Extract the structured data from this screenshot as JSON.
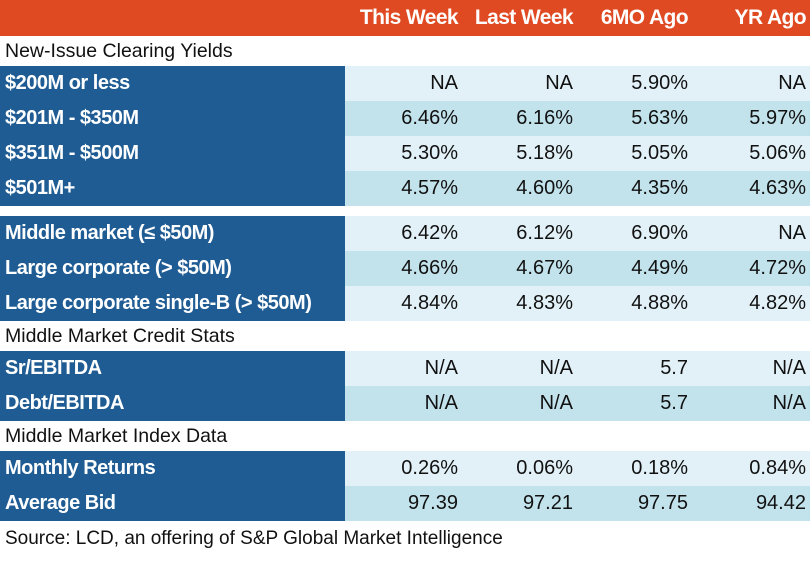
{
  "chart_data": {
    "type": "table",
    "columns": [
      "This Week",
      "Last Week",
      "6MO Ago",
      "YR Ago"
    ],
    "sections": [
      {
        "title": "New-Issue Clearing Yields",
        "rows": [
          {
            "label": "$200M or less",
            "values": [
              "NA",
              "NA",
              "5.90%",
              "NA"
            ]
          },
          {
            "label": "$201M - $350M",
            "values": [
              "6.46%",
              "6.16%",
              "5.63%",
              "5.97%"
            ]
          },
          {
            "label": "$351M - $500M",
            "values": [
              "5.30%",
              "5.18%",
              "5.05%",
              "5.06%"
            ]
          },
          {
            "label": "$501M+",
            "values": [
              "4.57%",
              "4.60%",
              "4.35%",
              "4.63%"
            ]
          }
        ]
      },
      {
        "title": "",
        "rows": [
          {
            "label": "Middle market (≤ $50M)",
            "values": [
              "6.42%",
              "6.12%",
              "6.90%",
              "NA"
            ]
          },
          {
            "label": "Large corporate (> $50M)",
            "values": [
              "4.66%",
              "4.67%",
              "4.49%",
              "4.72%"
            ]
          },
          {
            "label": "Large corporate single-B (> $50M)",
            "values": [
              "4.84%",
              "4.83%",
              "4.88%",
              "4.82%"
            ]
          }
        ]
      },
      {
        "title": "Middle Market Credit Stats",
        "rows": [
          {
            "label": "Sr/EBITDA",
            "values": [
              "N/A",
              "N/A",
              "5.7",
              "N/A"
            ]
          },
          {
            "label": "Debt/EBITDA",
            "values": [
              "N/A",
              "N/A",
              "5.7",
              "N/A"
            ]
          }
        ]
      },
      {
        "title": "Middle Market Index Data",
        "rows": [
          {
            "label": "Monthly Returns",
            "values": [
              "0.26%",
              "0.06%",
              "0.18%",
              "0.84%"
            ]
          },
          {
            "label": "Average Bid",
            "values": [
              "97.39",
              "97.21",
              "97.75",
              "94.42"
            ]
          }
        ]
      }
    ],
    "source": "Source: LCD, an offering of S&P Global Market Intelligence"
  },
  "colors": {
    "header_bg": "#e04a22",
    "header_text": "#ffffff",
    "label_bg": "#1f5c93",
    "label_text": "#ffffff",
    "row_light": "#e2f1f8",
    "row_dark": "#c2e2ec"
  }
}
